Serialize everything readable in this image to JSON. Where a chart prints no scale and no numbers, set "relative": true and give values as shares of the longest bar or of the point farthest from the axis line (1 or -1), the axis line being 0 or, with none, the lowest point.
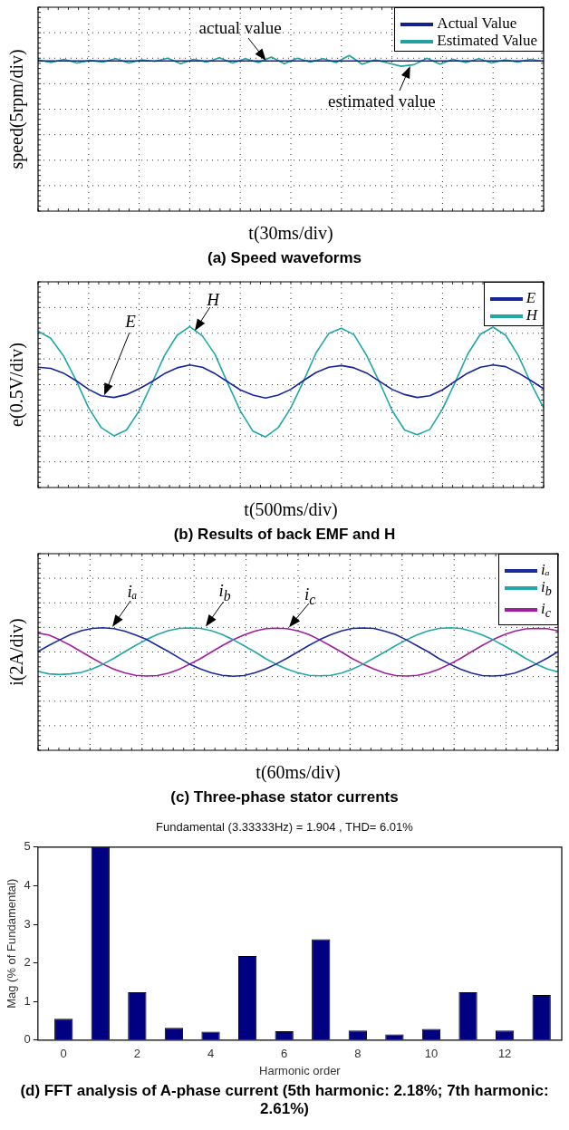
{
  "chart_data": [
    {
      "type": "line",
      "title": "(a) Speed waveforms",
      "xlabel": "t(30ms/div)",
      "ylabel": "speed(5rpm/div)",
      "relative": true,
      "grid": true,
      "legend": "top right",
      "marker": "none",
      "tick_labels": false,
      "categories": [
        null,
        null,
        null,
        null,
        null,
        null,
        null,
        null,
        null,
        null,
        null,
        null,
        null,
        null,
        null,
        null,
        null,
        null,
        null,
        null,
        null,
        null,
        null,
        null,
        null,
        null,
        null,
        null,
        null,
        null,
        null,
        null,
        null,
        null,
        null,
        null,
        null,
        null,
        null,
        null
      ],
      "series": [
        {
          "name": "Actual Value",
          "color": "#14208c",
          "values": [
            0.9,
            0.9,
            0.9,
            0.9,
            0.9,
            0.9,
            0.9,
            0.9,
            0.9,
            0.9,
            0.9,
            0.9,
            0.9,
            0.9,
            0.9,
            0.9,
            0.9,
            0.9,
            0.9,
            0.9,
            0.9,
            0.9,
            0.9,
            0.9,
            0.9,
            0.9,
            0.9,
            0.9,
            0.9,
            0.9,
            0.9,
            0.9,
            0.9,
            0.9,
            0.9,
            0.9,
            0.9,
            0.9,
            0.9,
            0.9
          ]
        },
        {
          "name": "Estimated Value",
          "color": "#20a0a0",
          "values": [
            0.92,
            0.87,
            0.93,
            0.86,
            0.91,
            0.88,
            0.94,
            0.86,
            0.92,
            0.89,
            0.95,
            0.85,
            0.93,
            0.88,
            0.96,
            0.86,
            0.94,
            0.87,
            0.97,
            0.85,
            0.95,
            0.88,
            0.94,
            0.87,
            1,
            0.84,
            0.92,
            0.86,
            0.8,
            0.83,
            0.95,
            0.84,
            0.93,
            0.87,
            0.94,
            0.86,
            0.92,
            0.88,
            0.93,
            0.89
          ]
        }
      ],
      "annotations": [
        "actual value",
        "estimated value"
      ]
    },
    {
      "type": "line",
      "title": "(b) Results of back EMF and H",
      "xlabel": "t(500ms/div)",
      "ylabel": "e(0.5V/div)",
      "relative": true,
      "grid": true,
      "legend": "top right",
      "marker": "none",
      "tick_labels": false,
      "categories": [
        null,
        null,
        null,
        null,
        null,
        null,
        null,
        null,
        null,
        null,
        null,
        null,
        null,
        null,
        null,
        null,
        null,
        null,
        null,
        null,
        null,
        null,
        null,
        null,
        null,
        null,
        null,
        null,
        null,
        null,
        null,
        null,
        null,
        null,
        null,
        null,
        null,
        null,
        null,
        null,
        null
      ],
      "series": [
        {
          "name": "E",
          "color": "#18249a",
          "values": [
            0.3,
            0.28,
            0.2,
            0.07,
            -0.08,
            -0.19,
            -0.22,
            -0.17,
            -0.07,
            0.05,
            0.19,
            0.29,
            0.34,
            0.3,
            0.19,
            0.05,
            -0.09,
            -0.18,
            -0.23,
            -0.18,
            -0.08,
            0.07,
            0.21,
            0.3,
            0.33,
            0.29,
            0.2,
            0.06,
            -0.08,
            -0.17,
            -0.22,
            -0.19,
            -0.09,
            0.06,
            0.2,
            0.3,
            0.34,
            0.31,
            0.2,
            0.07,
            -0.07
          ]
        },
        {
          "name": "H",
          "color": "#20a8a8",
          "values": [
            0.92,
            0.8,
            0.5,
            0.08,
            -0.4,
            -0.74,
            -0.88,
            -0.78,
            -0.45,
            0.02,
            0.5,
            0.85,
            1,
            0.84,
            0.52,
            0.03,
            -0.45,
            -0.8,
            -0.9,
            -0.74,
            -0.4,
            0.06,
            0.55,
            0.88,
            0.97,
            0.86,
            0.5,
            0.05,
            -0.44,
            -0.78,
            -0.86,
            -0.77,
            -0.42,
            0.04,
            0.53,
            0.87,
            0.99,
            0.85,
            0.5,
            0.02,
            -0.4
          ]
        }
      ],
      "annotations": [
        "E",
        "H"
      ]
    },
    {
      "type": "line",
      "title": "(c) Three-phase stator currents",
      "xlabel": "t(60ms/div)",
      "ylabel": "i(2A/div)",
      "relative": true,
      "grid": true,
      "legend": "top right",
      "marker": "none",
      "tick_labels": false,
      "categories": [
        null,
        null,
        null,
        null,
        null,
        null,
        null,
        null,
        null,
        null,
        null,
        null,
        null,
        null,
        null,
        null,
        null,
        null,
        null,
        null,
        null,
        null,
        null,
        null,
        null,
        null,
        null,
        null,
        null,
        null,
        null,
        null,
        null,
        null,
        null,
        null,
        null,
        null,
        null,
        null,
        null,
        null,
        null,
        null,
        null,
        null,
        null,
        null,
        null
      ],
      "series": [
        {
          "name": "iₐ",
          "color": "#1c2a9c",
          "values": [
            0.02,
            0.27,
            0.5,
            0.72,
            0.88,
            0.97,
            1,
            0.96,
            0.86,
            0.7,
            0.52,
            0.27,
            0.03,
            -0.24,
            -0.5,
            -0.7,
            -0.86,
            -0.96,
            -1,
            -0.97,
            -0.86,
            -0.7,
            -0.49,
            -0.25,
            0.01,
            0.27,
            0.51,
            0.71,
            0.87,
            0.97,
            0.99,
            0.97,
            0.86,
            0.72,
            0.5,
            0.25,
            0.01,
            -0.27,
            -0.5,
            -0.71,
            -0.87,
            -0.97,
            -0.99,
            -0.96,
            -0.87,
            -0.7,
            -0.49,
            -0.25,
            0.02
          ]
        },
        {
          "name": "i$_{b}$",
          "color": "#22a8a8",
          "values": [
            -0.8,
            -0.9,
            -0.93,
            -0.9,
            -0.84,
            -0.7,
            -0.5,
            -0.26,
            0.01,
            0.27,
            0.51,
            0.72,
            0.88,
            0.97,
            0.99,
            0.97,
            0.88,
            0.72,
            0.51,
            0.26,
            0.01,
            -0.27,
            -0.51,
            -0.71,
            -0.86,
            -0.96,
            -0.98,
            -0.96,
            -0.87,
            -0.71,
            -0.5,
            -0.25,
            0,
            0.26,
            0.5,
            0.71,
            0.87,
            0.97,
            1,
            0.97,
            0.86,
            0.7,
            0.5,
            0.26,
            0.01,
            -0.26,
            -0.5,
            -0.7,
            -0.82
          ]
        },
        {
          "name": "i$_{c}$",
          "color": "#a020a0",
          "values": [
            0.78,
            0.7,
            0.5,
            0.27,
            0.01,
            -0.25,
            -0.5,
            -0.71,
            -0.86,
            -0.96,
            -0.99,
            -0.97,
            -0.88,
            -0.72,
            -0.5,
            -0.27,
            0,
            0.26,
            0.5,
            0.7,
            0.86,
            0.96,
            0.98,
            0.96,
            0.87,
            0.72,
            0.5,
            0.25,
            0,
            -0.27,
            -0.5,
            -0.7,
            -0.87,
            -0.97,
            -0.99,
            -0.96,
            -0.87,
            -0.71,
            -0.5,
            -0.26,
            0.01,
            0.27,
            0.51,
            0.71,
            0.86,
            0.95,
            0.97,
            0.96,
            0.87
          ]
        }
      ],
      "annotations": [
        "iₐ",
        "i$_{b}$",
        "i$_{c}$"
      ]
    },
    {
      "type": "bar",
      "title": "(d) FFT analysis of A-phase current (5th harmonic: 2.18%; 7th harmonic: 2.61%)",
      "subtitle": "Fundamental (3.33333Hz) = 1.904 , THD= 6.01%",
      "xlabel": "Harmonic order",
      "ylabel": "Mag (% of Fundamental)",
      "x": [
        0,
        1,
        2,
        3,
        4,
        5,
        6,
        7,
        8,
        9,
        10,
        11,
        12,
        13
      ],
      "values": [
        0.55,
        5,
        1.24,
        0.32,
        0.22,
        2.18,
        0.23,
        2.61,
        0.25,
        0.15,
        0.29,
        1.24,
        0.25,
        1.17
      ],
      "color": "#000080",
      "xlim": [
        -0.7,
        13.55
      ],
      "xticks": [
        0,
        2,
        4,
        6,
        8,
        10,
        12
      ],
      "ylim": [
        0,
        5
      ],
      "yticks": [
        0,
        1,
        2,
        3,
        4,
        5
      ]
    }
  ]
}
